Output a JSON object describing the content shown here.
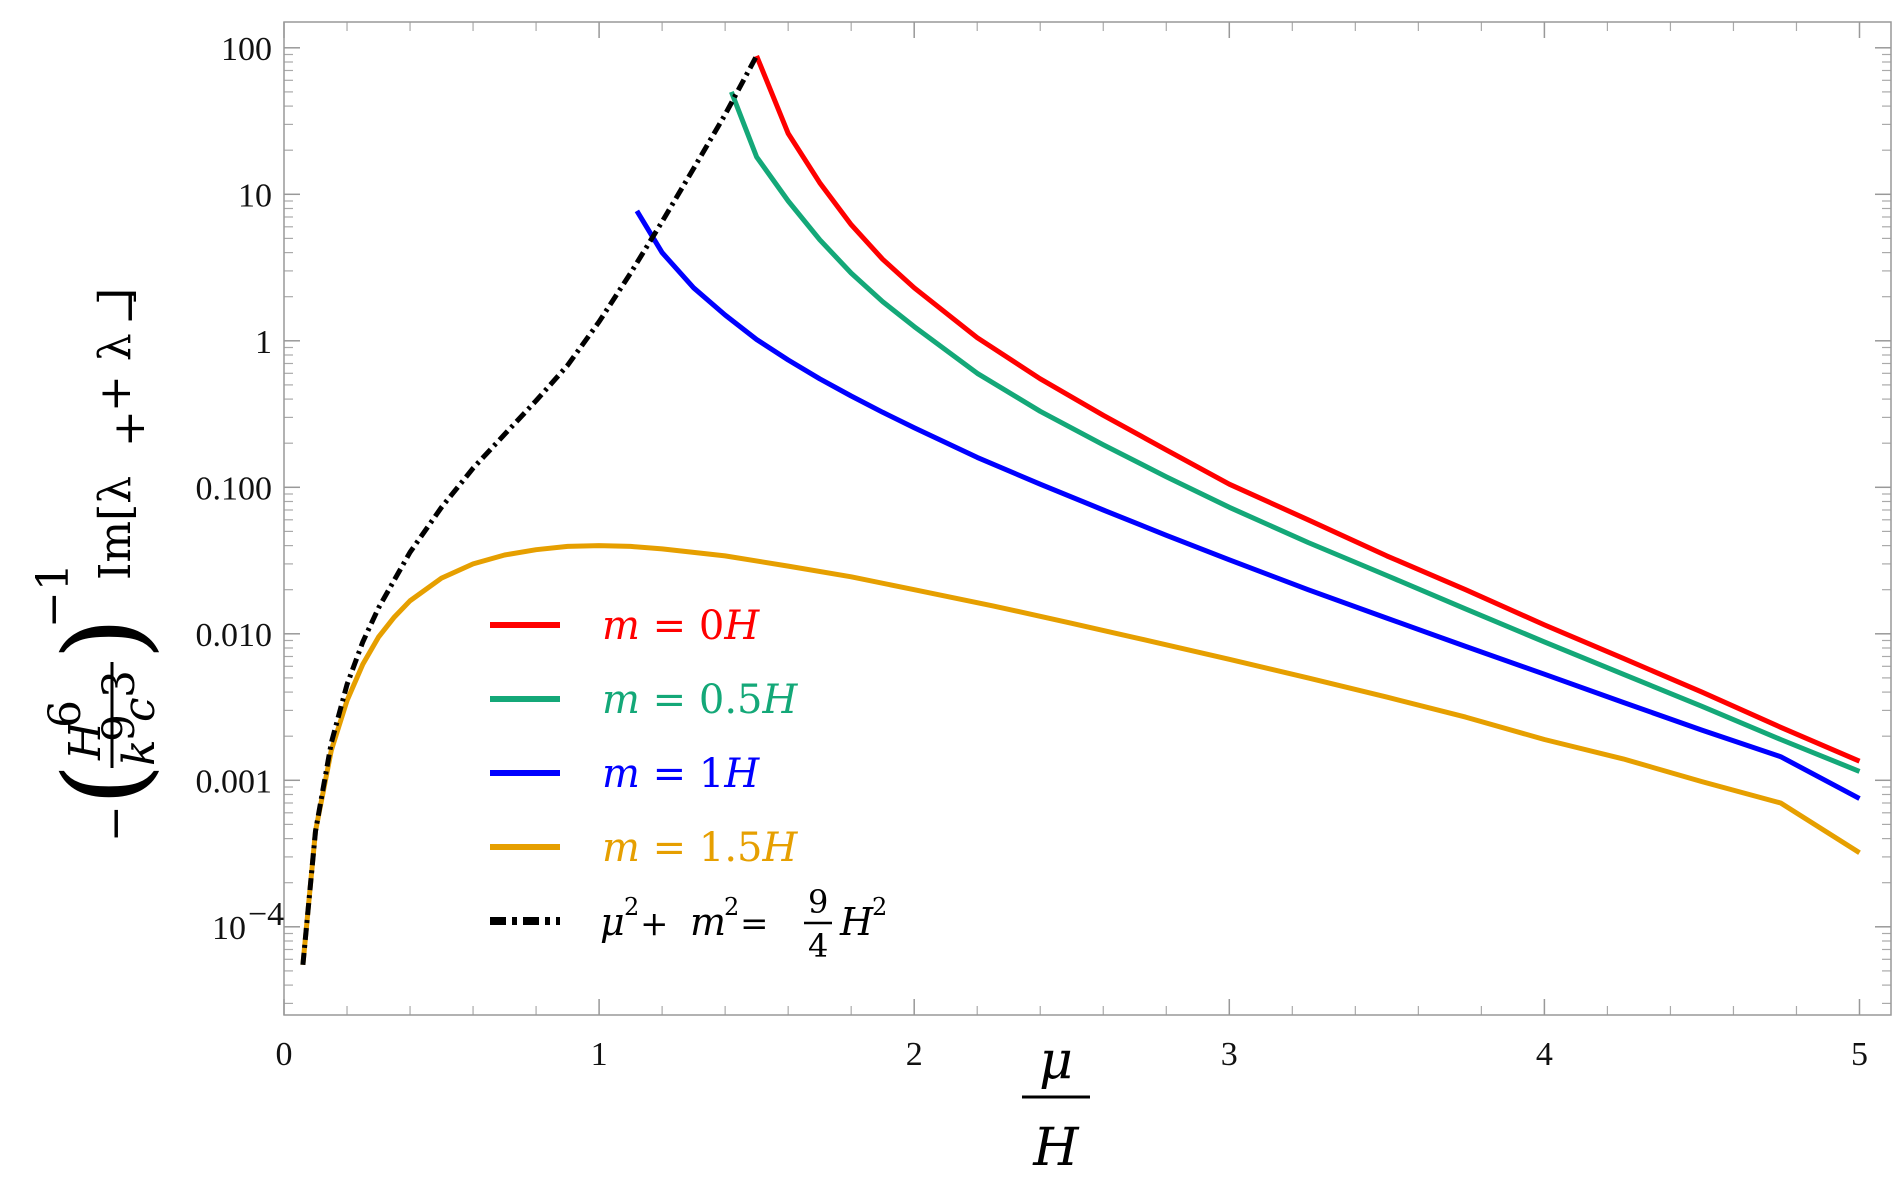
{
  "chart_data": {
    "type": "line",
    "title": "",
    "xlabel": {
      "numerator": "μ",
      "denominator": "H"
    },
    "ylabel": {
      "prefix": "−",
      "frac_num_base": "H",
      "frac_num_exp": "6",
      "frac_den_k": "k",
      "frac_den_k_exp": "9",
      "frac_den_c": "c",
      "frac_den_c_exp": "3",
      "power": "−1",
      "text": "Im[λ",
      "plus_sub": "+",
      "mid": " + λ",
      "minus_sub": "−",
      "close": "]"
    },
    "xlim": [
      0,
      5.1
    ],
    "ylim": [
      2.5e-05,
      150
    ],
    "yscale": "log",
    "x_ticks": [
      {
        "value": 0,
        "label": "0"
      },
      {
        "value": 1,
        "label": "1"
      },
      {
        "value": 2,
        "label": "2"
      },
      {
        "value": 3,
        "label": "3"
      },
      {
        "value": 4,
        "label": "4"
      },
      {
        "value": 5,
        "label": "5"
      }
    ],
    "y_ticks": [
      {
        "value": 100,
        "label": "100"
      },
      {
        "value": 10,
        "label": "10"
      },
      {
        "value": 1,
        "label": "1"
      },
      {
        "value": 0.1,
        "label": "0.100"
      },
      {
        "value": 0.01,
        "label": "0.010"
      },
      {
        "value": 0.001,
        "label": "0.001"
      },
      {
        "value": 0.0001,
        "label": "10",
        "sup": "−4"
      }
    ],
    "legend_position": "center-left",
    "series": [
      {
        "name": "m = 0H",
        "color": "#ff0000",
        "style": "solid",
        "points": [
          [
            1.5,
            88
          ],
          [
            1.6,
            26
          ],
          [
            1.7,
            12
          ],
          [
            1.8,
            6.2
          ],
          [
            1.9,
            3.6
          ],
          [
            2.0,
            2.3
          ],
          [
            2.2,
            1.05
          ],
          [
            2.4,
            0.55
          ],
          [
            2.6,
            0.31
          ],
          [
            2.8,
            0.18
          ],
          [
            3.0,
            0.105
          ],
          [
            3.25,
            0.06
          ],
          [
            3.5,
            0.034
          ],
          [
            3.75,
            0.02
          ],
          [
            4.0,
            0.0115
          ],
          [
            4.25,
            0.0068
          ],
          [
            4.5,
            0.004
          ],
          [
            4.75,
            0.0023
          ],
          [
            5.0,
            0.00135
          ]
        ]
      },
      {
        "name": "m = 0.5H",
        "color": "#14a878",
        "style": "solid",
        "points": [
          [
            1.42,
            50
          ],
          [
            1.5,
            18
          ],
          [
            1.6,
            9.0
          ],
          [
            1.7,
            4.9
          ],
          [
            1.8,
            2.9
          ],
          [
            1.9,
            1.85
          ],
          [
            2.0,
            1.25
          ],
          [
            2.2,
            0.6
          ],
          [
            2.4,
            0.33
          ],
          [
            2.6,
            0.195
          ],
          [
            2.8,
            0.118
          ],
          [
            3.0,
            0.073
          ],
          [
            3.25,
            0.042
          ],
          [
            3.5,
            0.025
          ],
          [
            3.75,
            0.0148
          ],
          [
            4.0,
            0.0088
          ],
          [
            4.25,
            0.0053
          ],
          [
            4.5,
            0.0032
          ],
          [
            4.75,
            0.0019
          ],
          [
            5.0,
            0.00115
          ]
        ]
      },
      {
        "name": "m = 1H",
        "color": "#0000ff",
        "style": "solid",
        "points": [
          [
            1.12,
            7.7
          ],
          [
            1.2,
            4.0
          ],
          [
            1.3,
            2.3
          ],
          [
            1.4,
            1.5
          ],
          [
            1.5,
            1.02
          ],
          [
            1.6,
            0.74
          ],
          [
            1.7,
            0.55
          ],
          [
            1.8,
            0.42
          ],
          [
            1.9,
            0.325
          ],
          [
            2.0,
            0.255
          ],
          [
            2.2,
            0.16
          ],
          [
            2.4,
            0.105
          ],
          [
            2.6,
            0.07
          ],
          [
            2.8,
            0.047
          ],
          [
            3.0,
            0.032
          ],
          [
            3.25,
            0.02
          ],
          [
            3.5,
            0.0128
          ],
          [
            3.75,
            0.0082
          ],
          [
            4.0,
            0.0053
          ],
          [
            4.25,
            0.0034
          ],
          [
            4.5,
            0.0022
          ],
          [
            4.75,
            0.00145
          ],
          [
            5.0,
            0.00075
          ]
        ]
      },
      {
        "name": "m = 1.5H",
        "color": "#e69f00",
        "style": "solid",
        "points": [
          [
            0.06,
            5.5e-05
          ],
          [
            0.1,
            0.00045
          ],
          [
            0.15,
            0.0016
          ],
          [
            0.2,
            0.0035
          ],
          [
            0.25,
            0.0062
          ],
          [
            0.3,
            0.0095
          ],
          [
            0.35,
            0.013
          ],
          [
            0.4,
            0.0168
          ],
          [
            0.5,
            0.024
          ],
          [
            0.6,
            0.03
          ],
          [
            0.7,
            0.0345
          ],
          [
            0.8,
            0.0375
          ],
          [
            0.9,
            0.0395
          ],
          [
            1.0,
            0.04
          ],
          [
            1.1,
            0.0395
          ],
          [
            1.2,
            0.038
          ],
          [
            1.4,
            0.034
          ],
          [
            1.6,
            0.029
          ],
          [
            1.8,
            0.0245
          ],
          [
            2.0,
            0.02
          ],
          [
            2.25,
            0.0155
          ],
          [
            2.5,
            0.0118
          ],
          [
            2.75,
            0.0089
          ],
          [
            3.0,
            0.0067
          ],
          [
            3.25,
            0.005
          ],
          [
            3.5,
            0.0037
          ],
          [
            3.75,
            0.0027
          ],
          [
            4.0,
            0.0019
          ],
          [
            4.25,
            0.0014
          ],
          [
            4.5,
            0.00098
          ],
          [
            4.75,
            0.0007
          ],
          [
            5.0,
            0.00032
          ]
        ]
      },
      {
        "name": "μ² + m² = 9/4 H²",
        "color": "#000000",
        "style": "dash-dot",
        "points": [
          [
            0.06,
            5.5e-05
          ],
          [
            0.1,
            0.00045
          ],
          [
            0.15,
            0.0018
          ],
          [
            0.2,
            0.0045
          ],
          [
            0.25,
            0.0088
          ],
          [
            0.3,
            0.015
          ],
          [
            0.4,
            0.036
          ],
          [
            0.5,
            0.073
          ],
          [
            0.6,
            0.135
          ],
          [
            0.7,
            0.23
          ],
          [
            0.8,
            0.39
          ],
          [
            0.9,
            0.68
          ],
          [
            1.0,
            1.35
          ],
          [
            1.1,
            2.9
          ],
          [
            1.2,
            6.5
          ],
          [
            1.3,
            15
          ],
          [
            1.4,
            35
          ],
          [
            1.5,
            88
          ]
        ]
      }
    ],
    "legend": [
      {
        "parts": [
          {
            "t": "m",
            "i": true
          },
          {
            "t": " = 0",
            "i": false
          },
          {
            "t": "H",
            "i": true
          }
        ],
        "color": "#ff0000",
        "style": "solid"
      },
      {
        "parts": [
          {
            "t": "m",
            "i": true
          },
          {
            "t": " = 0.5",
            "i": false
          },
          {
            "t": "H",
            "i": true
          }
        ],
        "color": "#14a878",
        "style": "solid"
      },
      {
        "parts": [
          {
            "t": "m",
            "i": true
          },
          {
            "t": " = 1",
            "i": false
          },
          {
            "t": "H",
            "i": true
          }
        ],
        "color": "#0000ff",
        "style": "solid"
      },
      {
        "parts": [
          {
            "t": "m",
            "i": true
          },
          {
            "t": " = 1.5",
            "i": false
          },
          {
            "t": "H",
            "i": true
          }
        ],
        "color": "#e69f00",
        "style": "solid"
      },
      {
        "color": "#000000",
        "style": "dash-dot",
        "eq": {
          "mu": "μ",
          "two": "2",
          "plus": " + ",
          "m": "m",
          "equals": " = ",
          "frac_num": "9",
          "frac_den": "4",
          "H": "H"
        }
      }
    ]
  }
}
